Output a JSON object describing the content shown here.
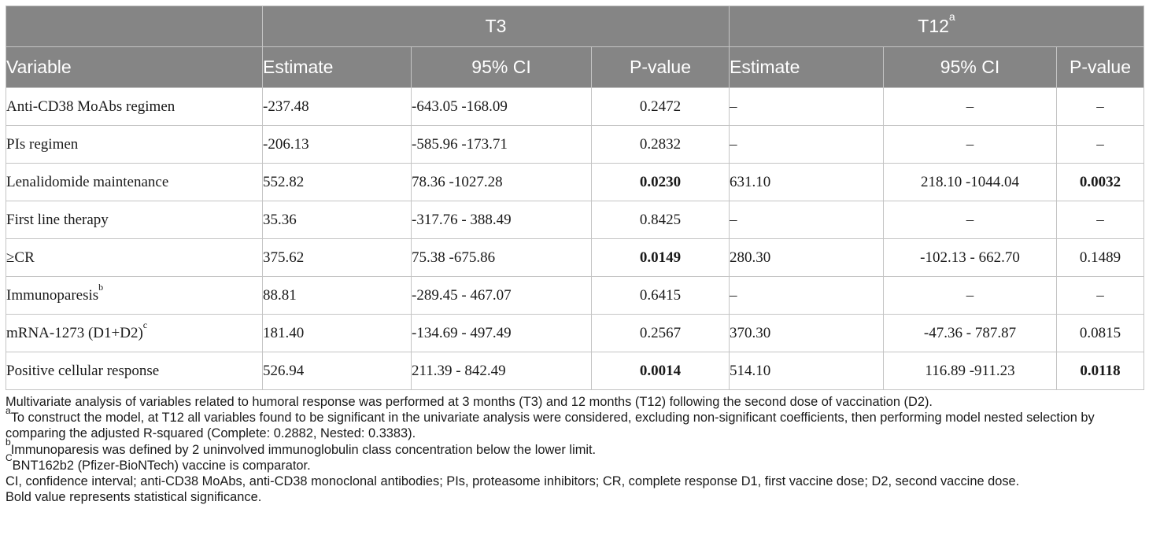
{
  "table": {
    "group_headers": {
      "t3": "T3",
      "t12": "T12",
      "t12_sup": "a"
    },
    "column_headers": [
      "Variable",
      "Estimate",
      "95% CI",
      "P-value",
      "Estimate",
      "95% CI",
      "P-value"
    ],
    "rows": [
      {
        "variable": "Anti-CD38 MoAbs regimen",
        "sup": "",
        "t3_estimate": "-237.48",
        "t3_ci": "-643.05 -168.09",
        "t3_p": "0.2472",
        "t3_p_bold": false,
        "t12_estimate": "–",
        "t12_ci": "–",
        "t12_p": "–",
        "t12_p_bold": false
      },
      {
        "variable": "PIs regimen",
        "sup": "",
        "t3_estimate": "-206.13",
        "t3_ci": "-585.96 -173.71",
        "t3_p": "0.2832",
        "t3_p_bold": false,
        "t12_estimate": "–",
        "t12_ci": "–",
        "t12_p": "–",
        "t12_p_bold": false
      },
      {
        "variable": "Lenalidomide maintenance",
        "sup": "",
        "t3_estimate": "552.82",
        "t3_ci": "78.36 -1027.28",
        "t3_p": "0.0230",
        "t3_p_bold": true,
        "t12_estimate": "631.10",
        "t12_ci": "218.10 -1044.04",
        "t12_p": "0.0032",
        "t12_p_bold": true
      },
      {
        "variable": "First line therapy",
        "sup": "",
        "t3_estimate": "35.36",
        "t3_ci": "-317.76 - 388.49",
        "t3_p": "0.8425",
        "t3_p_bold": false,
        "t12_estimate": "–",
        "t12_ci": "–",
        "t12_p": "–",
        "t12_p_bold": false
      },
      {
        "variable": "≥CR",
        "sup": "",
        "t3_estimate": "375.62",
        "t3_ci": "75.38 -675.86",
        "t3_p": "0.0149",
        "t3_p_bold": true,
        "t12_estimate": "280.30",
        "t12_ci": "-102.13 - 662.70",
        "t12_p": "0.1489",
        "t12_p_bold": false
      },
      {
        "variable": "Immunoparesis",
        "sup": "b",
        "t3_estimate": "88.81",
        "t3_ci": "-289.45 - 467.07",
        "t3_p": "0.6415",
        "t3_p_bold": false,
        "t12_estimate": "–",
        "t12_ci": "–",
        "t12_p": "–",
        "t12_p_bold": false
      },
      {
        "variable": "mRNA-1273 (D1+D2)",
        "sup": "c",
        "t3_estimate": "181.40",
        "t3_ci": "-134.69 - 497.49",
        "t3_p": "0.2567",
        "t3_p_bold": false,
        "t12_estimate": "370.30",
        "t12_ci": "-47.36 - 787.87",
        "t12_p": "0.0815",
        "t12_p_bold": false
      },
      {
        "variable": "Positive cellular response",
        "sup": "",
        "t3_estimate": "526.94",
        "t3_ci": "211.39 - 842.49",
        "t3_p": "0.0014",
        "t3_p_bold": true,
        "t12_estimate": "514.10",
        "t12_ci": "116.89 -911.23",
        "t12_p": "0.0118",
        "t12_p_bold": true
      }
    ]
  },
  "notes": [
    {
      "sup": "",
      "text": "Multivariate analysis of variables related to humoral response was performed at 3 months (T3) and 12 months (T12) following the second dose of vaccination (D2)."
    },
    {
      "sup": "a",
      "text": "To construct the model, at T12 all variables found to be significant in the univariate analysis were considered, excluding non-significant coefficients, then performing model nested selection by comparing the adjusted R-squared (Complete: 0.2882, Nested: 0.3383)."
    },
    {
      "sup": "b",
      "text": "Immunoparesis was defined by 2 uninvolved immunoglobulin class concentration below the lower limit."
    },
    {
      "sup": "C",
      "text": "BNT162b2 (Pfizer-BioNTech) vaccine is comparator."
    },
    {
      "sup": "",
      "text": "CI, confidence interval; anti-CD38 MoAbs, anti-CD38 monoclonal antibodies; PIs, proteasome inhibitors; CR, complete response D1, first vaccine dose; D2, second vaccine dose."
    },
    {
      "sup": "",
      "text": "Bold value represents statistical significance."
    }
  ],
  "colors": {
    "header_bg": "#858585",
    "header_text": "#ffffff",
    "border": "#c4c4c4",
    "body_text": "#1a1a1a"
  }
}
